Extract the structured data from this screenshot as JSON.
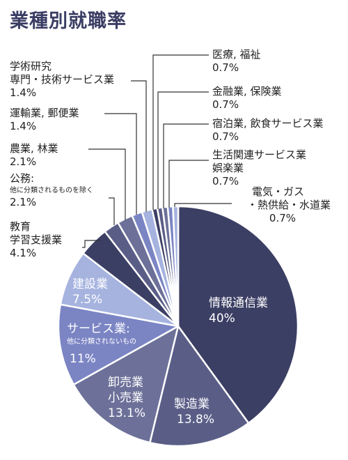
{
  "title": "業種別就職率",
  "chart_data": {
    "type": "pie",
    "title": "業種別就職率",
    "unit": "%",
    "slices": [
      {
        "name": "情報通信業",
        "value": 40,
        "value_label": "40%",
        "color": "#3c3f64"
      },
      {
        "name": "製造業",
        "value": 13.8,
        "value_label": "13.8%",
        "color": "#5a5e87"
      },
      {
        "name": "卸売業 小売業",
        "value": 13.1,
        "value_label": "13.1%",
        "color": "#6d7199"
      },
      {
        "name": "サービス業",
        "note": "他に分類されないもの",
        "value": 11,
        "value_label": "11%",
        "color": "#7b85c4"
      },
      {
        "name": "建設業",
        "value": 7.5,
        "value_label": "7.5%",
        "color": "#a6b3df"
      },
      {
        "name": "教育 学習支援業",
        "value": 4.1,
        "value_label": "4.1%",
        "color": "#3c3f64"
      },
      {
        "name": "公務",
        "note": "他に分類されるものを除く",
        "value": 2.1,
        "value_label": "2.1%",
        "color": "#5a5e87"
      },
      {
        "name": "農業, 林業",
        "value": 2.1,
        "value_label": "2.1%",
        "color": "#6d7199"
      },
      {
        "name": "運輸業, 郵便業",
        "value": 1.4,
        "value_label": "1.4%",
        "color": "#7b85c4"
      },
      {
        "name": "学術研究 専門・技術サービス業",
        "value": 1.4,
        "value_label": "1.4%",
        "color": "#a6b3df"
      },
      {
        "name": "医療, 福祉",
        "value": 0.7,
        "value_label": "0.7%",
        "color": "#3c3f64"
      },
      {
        "name": "金融業, 保険業",
        "value": 0.7,
        "value_label": "0.7%",
        "color": "#5a5e87"
      },
      {
        "name": "宿泊業, 飲食サービス業",
        "value": 0.7,
        "value_label": "0.7%",
        "color": "#6d7199"
      },
      {
        "name": "生活関連サービス業 娯楽業",
        "value": 0.7,
        "value_label": "0.7%",
        "color": "#7b85c4"
      },
      {
        "name": "電気・ガス・熱供給・水道業",
        "value": 0.7,
        "value_label": "0.7%",
        "color": "#a6b3df"
      }
    ]
  },
  "labels": {
    "info": {
      "l1": "情報通信業",
      "v": "40%"
    },
    "mfg": {
      "l1": "製造業",
      "v": "13.8%"
    },
    "retail": {
      "l1": "卸売業",
      "l2": "小売業",
      "v": "13.1%"
    },
    "service": {
      "l1": "サービス業:",
      "l2": "他に分類されないもの",
      "v": "11%"
    },
    "constr": {
      "l1": "建設業",
      "v": "7.5%"
    },
    "edu": {
      "l1": "教育",
      "l2": "学習支援業",
      "v": "4.1%"
    },
    "public": {
      "l1": "公務:",
      "l2": "他に分類されるものを除く",
      "v": "2.1%"
    },
    "agri": {
      "l1": "農業, 林業",
      "v": "2.1%"
    },
    "trans": {
      "l1": "運輸業, 郵便業",
      "v": "1.4%"
    },
    "acad": {
      "l1": "学術研究",
      "l2": "専門・技術サービス業",
      "v": "1.4%"
    },
    "med": {
      "l1": "医療, 福祉",
      "v": "0.7%"
    },
    "fin": {
      "l1": "金融業, 保険業",
      "v": "0.7%"
    },
    "hotel": {
      "l1": "宿泊業, 飲食サービス業",
      "v": "0.7%"
    },
    "life": {
      "l1": "生活関連サービス業",
      "l2": "娯楽業",
      "v": "0.7%"
    },
    "elec": {
      "l1": "電気・ガス",
      "l2": "・熱供給・水道業",
      "v": "0.7%"
    }
  }
}
